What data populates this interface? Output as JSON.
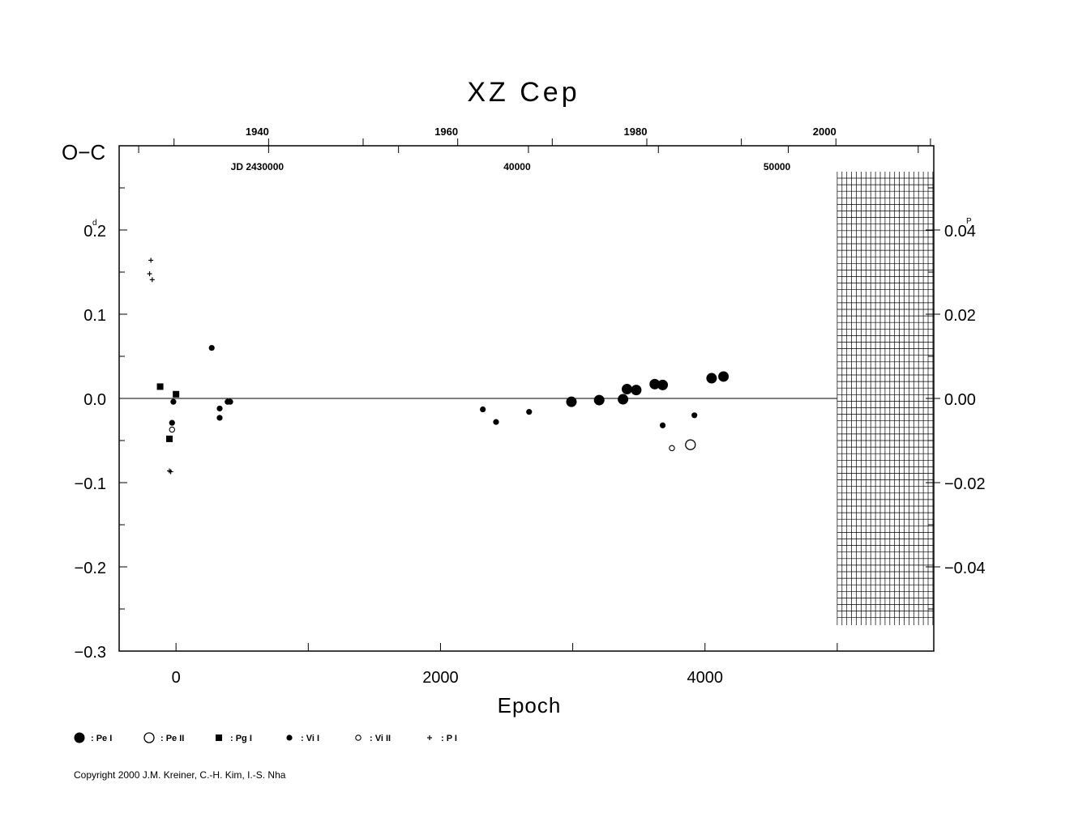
{
  "chart_data": {
    "type": "scatter",
    "title": "XZ Cep",
    "xlabel": "Epoch",
    "ylabel": "O−C",
    "ylabel_unit": "d",
    "y2_unit": "P",
    "xlim": [
      -430,
      5730
    ],
    "ylim": [
      -0.3,
      0.3
    ],
    "x_ticks": [
      0,
      2000,
      4000
    ],
    "x_tick_labels": [
      "0",
      "2000",
      "4000"
    ],
    "y_ticks": [
      -0.3,
      -0.2,
      -0.1,
      0.0,
      0.1,
      0.2
    ],
    "y_tick_labels": [
      "−0.3",
      "−0.2",
      "−0.1",
      "0.0",
      "0.1",
      "0.2"
    ],
    "y2_ticks": [
      -0.04,
      -0.02,
      0.0,
      0.02,
      0.04
    ],
    "y2_tick_labels": [
      "−0.04",
      "−0.02",
      "0.00",
      "0.02",
      "0.04"
    ],
    "y2_per_y": 0.2,
    "year_ticks": [
      {
        "label": "1940",
        "epoch": 700
      },
      {
        "label": "1960",
        "epoch": 2130
      },
      {
        "label": "1980",
        "epoch": 3560
      },
      {
        "label": "2000",
        "epoch": 4990
      }
    ],
    "jd_ticks": [
      {
        "label": "JD 2430000",
        "epoch": 700
      },
      {
        "label": "40000",
        "epoch": 2665
      },
      {
        "label": "50000",
        "epoch": 4630
      }
    ],
    "legend": [
      {
        "key": "pe1",
        "label": ": Pe I"
      },
      {
        "key": "pe2",
        "label": ": Pe II"
      },
      {
        "key": "pg1",
        "label": ": Pg I"
      },
      {
        "key": "vi1",
        "label": ": Vi I"
      },
      {
        "key": "vi2",
        "label": ": Vi II"
      },
      {
        "key": "p1",
        "label": ": P I"
      }
    ],
    "series": [
      {
        "key": "pe1",
        "points": [
          [
            2990,
            -0.004
          ],
          [
            3200,
            -0.002
          ],
          [
            3380,
            -0.001
          ],
          [
            3410,
            0.011
          ],
          [
            3480,
            0.01
          ],
          [
            3620,
            0.017
          ],
          [
            3680,
            0.016
          ],
          [
            4050,
            0.024
          ],
          [
            4140,
            0.026
          ]
        ]
      },
      {
        "key": "pe2",
        "points": [
          [
            3890,
            -0.055
          ]
        ]
      },
      {
        "key": "pg1",
        "points": [
          [
            -120,
            0.014
          ],
          [
            0,
            0.005
          ],
          [
            -50,
            -0.048
          ]
        ]
      },
      {
        "key": "vi1",
        "points": [
          [
            270,
            0.06
          ],
          [
            -20,
            -0.004
          ],
          [
            -30,
            -0.029
          ],
          [
            330,
            -0.012
          ],
          [
            330,
            -0.023
          ],
          [
            390,
            -0.004
          ],
          [
            410,
            -0.004
          ],
          [
            2320,
            -0.013
          ],
          [
            2420,
            -0.028
          ],
          [
            2670,
            -0.016
          ],
          [
            3680,
            -0.032
          ],
          [
            3920,
            -0.02
          ]
        ]
      },
      {
        "key": "vi2",
        "points": [
          [
            -30,
            -0.037
          ],
          [
            3750,
            -0.059
          ]
        ]
      },
      {
        "key": "p1",
        "points": [
          [
            -190,
            0.164
          ],
          [
            -200,
            0.148
          ],
          [
            -180,
            0.141
          ],
          [
            -50,
            -0.086
          ],
          [
            -40,
            -0.087
          ]
        ]
      }
    ]
  },
  "footer": {
    "copyright": "Copyright 2000 J.M. Kreiner, C.-H. Kim, I.-S. Nha"
  }
}
